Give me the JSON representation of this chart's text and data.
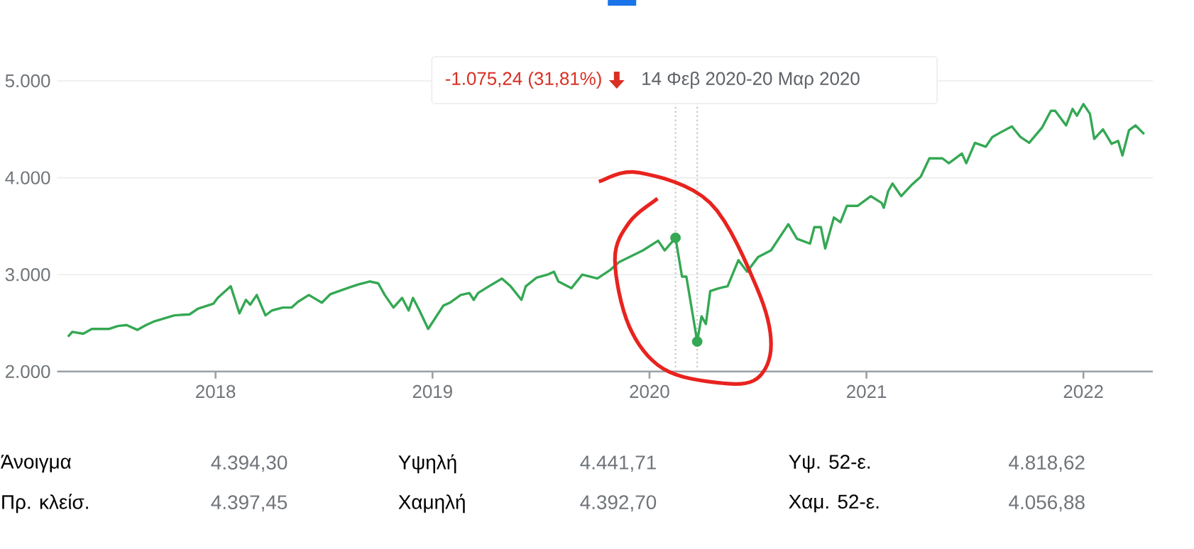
{
  "chart_data": {
    "type": "line",
    "xlim": [
      2017.27,
      2022.32
    ],
    "ylim": [
      2000,
      5000
    ],
    "xticks": [
      2018,
      2019,
      2020,
      2021,
      2022
    ],
    "yticks": [
      {
        "value": 2000,
        "label": "2.000"
      },
      {
        "value": 3000,
        "label": "3.000"
      },
      {
        "value": 4000,
        "label": "4.000"
      },
      {
        "value": 5000,
        "label": "5.000"
      }
    ],
    "grid": "y",
    "series": [
      {
        "color": "#34a853",
        "marker": "none",
        "x": [
          2017.32,
          2017.34,
          2017.39,
          2017.43,
          2017.51,
          2017.55,
          2017.59,
          2017.64,
          2017.68,
          2017.72,
          2017.81,
          2017.88,
          2017.92,
          2017.99,
          2018.01,
          2018.07,
          2018.11,
          2018.14,
          2018.16,
          2018.19,
          2018.23,
          2018.26,
          2018.31,
          2018.35,
          2018.38,
          2018.43,
          2018.49,
          2018.53,
          2018.62,
          2018.66,
          2018.71,
          2018.75,
          2018.78,
          2018.82,
          2018.86,
          2018.89,
          2018.91,
          2018.94,
          2018.98,
          2019.05,
          2019.08,
          2019.13,
          2019.17,
          2019.19,
          2019.21,
          2019.26,
          2019.32,
          2019.36,
          2019.41,
          2019.43,
          2019.48,
          2019.53,
          2019.56,
          2019.58,
          2019.64,
          2019.69,
          2019.76,
          2019.82,
          2019.86,
          2019.97,
          2020.04,
          2020.07,
          2020.12,
          2020.15,
          2020.17,
          2020.22,
          2020.24,
          2020.26,
          2020.28,
          2020.32,
          2020.36,
          2020.41,
          2020.45,
          2020.5,
          2020.56,
          2020.64,
          2020.68,
          2020.74,
          2020.76,
          2020.79,
          2020.81,
          2020.85,
          2020.88,
          2020.91,
          2020.96,
          2021.02,
          2021.07,
          2021.08,
          2021.1,
          2021.12,
          2021.16,
          2021.21,
          2021.25,
          2021.29,
          2021.35,
          2021.38,
          2021.44,
          2021.46,
          2021.5,
          2021.55,
          2021.58,
          2021.62,
          2021.67,
          2021.71,
          2021.75,
          2021.81,
          2021.85,
          2021.87,
          2021.92,
          2021.95,
          2021.97,
          2022.0,
          2022.03,
          2022.05,
          2022.09,
          2022.13,
          2022.16,
          2022.18,
          2022.21,
          2022.24,
          2022.28
        ],
        "values": [
          2360,
          2410,
          2390,
          2440,
          2440,
          2470,
          2480,
          2430,
          2480,
          2520,
          2580,
          2590,
          2650,
          2700,
          2760,
          2880,
          2600,
          2740,
          2690,
          2790,
          2580,
          2630,
          2660,
          2660,
          2720,
          2790,
          2710,
          2800,
          2870,
          2900,
          2930,
          2910,
          2790,
          2660,
          2760,
          2630,
          2760,
          2630,
          2440,
          2680,
          2710,
          2790,
          2810,
          2740,
          2810,
          2880,
          2960,
          2880,
          2740,
          2880,
          2970,
          3000,
          3030,
          2930,
          2860,
          3000,
          2960,
          3050,
          3130,
          3250,
          3350,
          3250,
          3380,
          2980,
          2980,
          2310,
          2570,
          2490,
          2830,
          2860,
          2880,
          3150,
          3030,
          3180,
          3250,
          3520,
          3370,
          3320,
          3490,
          3490,
          3270,
          3590,
          3540,
          3710,
          3710,
          3810,
          3740,
          3690,
          3860,
          3940,
          3810,
          3930,
          4010,
          4200,
          4200,
          4150,
          4250,
          4150,
          4360,
          4320,
          4420,
          4470,
          4530,
          4420,
          4360,
          4520,
          4690,
          4690,
          4540,
          4710,
          4640,
          4760,
          4660,
          4400,
          4500,
          4350,
          4380,
          4230,
          4490,
          4540,
          4450
        ]
      },
      {
        "type": "scatter",
        "color": "#34a853",
        "marker": "circle",
        "x": [
          2020.12,
          2020.22
        ],
        "values": [
          3380,
          2310
        ]
      }
    ],
    "ref_lines": [
      {
        "axis": "x",
        "value": 2020.12,
        "line_style": "dotted",
        "color": "#bdbdbd"
      },
      {
        "axis": "x",
        "value": 2020.22,
        "line_style": "dotted",
        "color": "#bdbdbd"
      }
    ],
    "annotations": [
      "-1.075,24 (31,81%)",
      "14 Φεβ 2020-20 Μαρ 2020",
      "Άνοιγμα",
      "4.394,30",
      "Υψηλή",
      "4.441,71",
      "Υψ. 52-ε.",
      "4.818,62",
      "Πρ. κλείσ.",
      "4.397,45",
      "Χαμηλή",
      "4.392,70",
      "Χαμ. 52-ε.",
      "4.056,88"
    ]
  }
}
